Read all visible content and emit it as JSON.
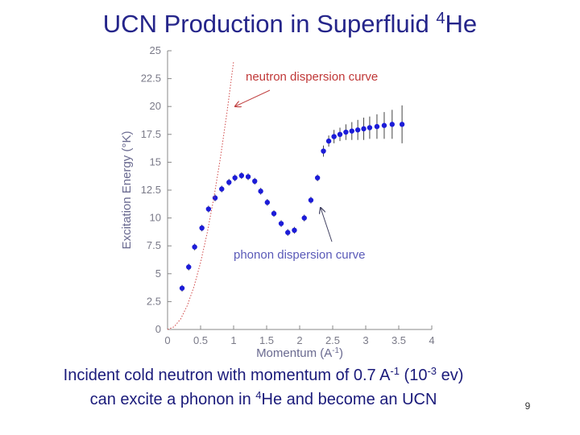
{
  "slide": {
    "title": [
      {
        "t": "UCN Production in Superfluid "
      },
      {
        "t": "4",
        "sup": true
      },
      {
        "t": "He"
      }
    ],
    "caption": [
      [
        {
          "t": "Incident cold neutron with momentum of 0.7 A"
        },
        {
          "t": "-1",
          "sup": true
        },
        {
          "t": " (10"
        },
        {
          "t": "-3",
          "sup": true
        },
        {
          "t": " ev)"
        }
      ],
      [
        {
          "t": "can excite a phonon in "
        },
        {
          "t": "4",
          "sup": true
        },
        {
          "t": "He and become an UCN"
        }
      ]
    ],
    "page_number": "9"
  },
  "chart_data": {
    "type": "scatter",
    "x_label": [
      {
        "t": "Momentum (A"
      },
      {
        "t": "-1",
        "sup": true
      },
      {
        "t": ")"
      }
    ],
    "y_label": "Excitation Energy (°K)",
    "xlim": [
      0,
      4
    ],
    "ylim": [
      0,
      25
    ],
    "xticks": [
      0,
      0.5,
      1,
      1.5,
      2,
      2.5,
      3,
      3.5,
      4
    ],
    "yticks": [
      0,
      2.5,
      5,
      7.5,
      10,
      12.5,
      15,
      17.5,
      20,
      22.5,
      25
    ],
    "series": [
      {
        "name": "phonon dispersion curve",
        "type": "scatter",
        "color": "#1c1cd8",
        "x": [
          0.22,
          0.32,
          0.41,
          0.52,
          0.62,
          0.72,
          0.82,
          0.93,
          1.02,
          1.12,
          1.22,
          1.32,
          1.41,
          1.51,
          1.61,
          1.72,
          1.82,
          1.92,
          2.07,
          2.17,
          2.27,
          2.36,
          2.44,
          2.52,
          2.61,
          2.7,
          2.79,
          2.88,
          2.97,
          3.06,
          3.17,
          3.28,
          3.4,
          3.55
        ],
        "values": [
          3.7,
          5.6,
          7.4,
          9.1,
          10.8,
          11.8,
          12.6,
          13.2,
          13.6,
          13.8,
          13.7,
          13.3,
          12.4,
          11.4,
          10.4,
          9.5,
          8.7,
          8.9,
          10.0,
          11.6,
          13.6,
          16.0,
          16.9,
          17.3,
          17.5,
          17.7,
          17.8,
          17.9,
          18.0,
          18.1,
          18.2,
          18.3,
          18.4,
          18.4
        ],
        "errors": [
          0.3,
          0.3,
          0.3,
          0.3,
          0.3,
          0.3,
          0.3,
          0.3,
          0.3,
          0.3,
          0.3,
          0.3,
          0.3,
          0.3,
          0.3,
          0.3,
          0.3,
          0.3,
          0.3,
          0.3,
          0.3,
          0.5,
          0.5,
          0.6,
          0.6,
          0.7,
          0.8,
          0.9,
          1.0,
          1.0,
          1.1,
          1.2,
          1.3,
          1.7
        ]
      },
      {
        "name": "neutron dispersion curve",
        "type": "line",
        "color": "#d04848",
        "dashed": true,
        "x": [
          0,
          0.1,
          0.2,
          0.3,
          0.4,
          0.5,
          0.6,
          0.7,
          0.8,
          0.9,
          1.0
        ],
        "values": [
          0,
          0.24,
          0.96,
          2.16,
          3.85,
          6.01,
          8.66,
          11.78,
          15.39,
          19.48,
          24.05
        ]
      }
    ]
  }
}
